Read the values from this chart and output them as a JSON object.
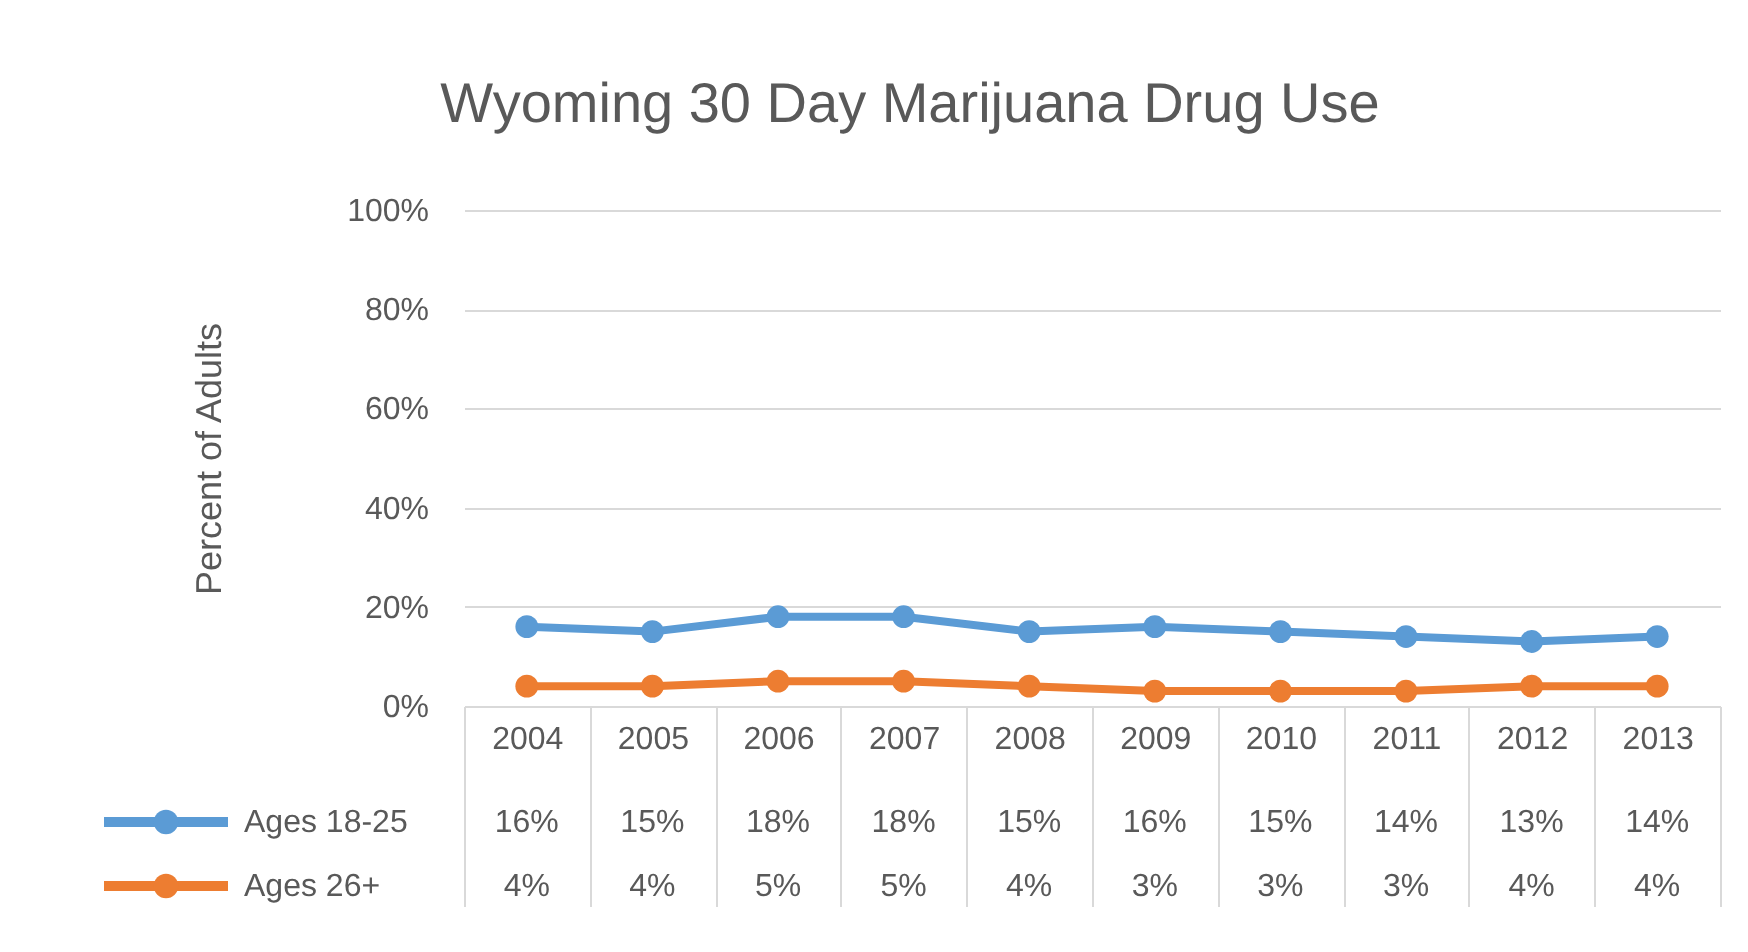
{
  "chart_data": {
    "type": "line",
    "title": "Wyoming 30 Day Marijuana Drug Use",
    "ylabel": "Percent of Adults",
    "categories": [
      "2004",
      "2005",
      "2006",
      "2007",
      "2008",
      "2009",
      "2010",
      "2011",
      "2012",
      "2013"
    ],
    "series": [
      {
        "name": "Ages 18-25",
        "color": "#5b9bd5",
        "values": [
          16,
          15,
          18,
          18,
          15,
          16,
          15,
          14,
          13,
          14
        ],
        "value_labels": [
          "16%",
          "15%",
          "18%",
          "18%",
          "15%",
          "16%",
          "15%",
          "14%",
          "13%",
          "14%"
        ]
      },
      {
        "name": "Ages 26+",
        "color": "#ed7d31",
        "values": [
          4,
          4,
          5,
          5,
          4,
          3,
          3,
          3,
          4,
          4
        ],
        "value_labels": [
          "4%",
          "4%",
          "5%",
          "5%",
          "4%",
          "3%",
          "3%",
          "3%",
          "4%",
          "4%"
        ]
      }
    ],
    "ylim": [
      0,
      100
    ],
    "yticks": [
      {
        "value": 0,
        "label": "0%"
      },
      {
        "value": 20,
        "label": "20%"
      },
      {
        "value": 40,
        "label": "40%"
      },
      {
        "value": 60,
        "label": "60%"
      },
      {
        "value": 80,
        "label": "80%"
      },
      {
        "value": 100,
        "label": "100%"
      }
    ],
    "grid": "y",
    "marker": "circle",
    "line_style": "solid",
    "legend": "bottom left"
  }
}
